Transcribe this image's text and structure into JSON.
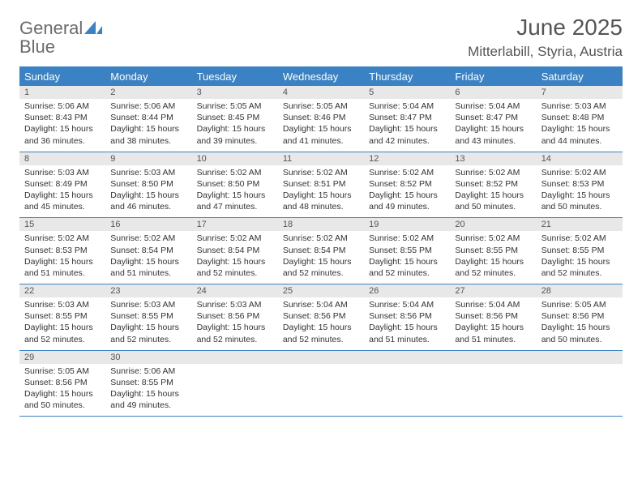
{
  "logo": {
    "word1": "General",
    "word2": "Blue"
  },
  "title": "June 2025",
  "location": "Mitterlabill, Styria, Austria",
  "colors": {
    "accent": "#3b82c4",
    "header_bg": "#3b82c4",
    "header_text": "#ffffff",
    "daynum_bg": "#e8e8e8",
    "text": "#333333",
    "title_text": "#555555"
  },
  "dayHeaders": [
    "Sunday",
    "Monday",
    "Tuesday",
    "Wednesday",
    "Thursday",
    "Friday",
    "Saturday"
  ],
  "weeks": [
    [
      {
        "n": "1",
        "sunrise": "Sunrise: 5:06 AM",
        "sunset": "Sunset: 8:43 PM",
        "day1": "Daylight: 15 hours",
        "day2": "and 36 minutes."
      },
      {
        "n": "2",
        "sunrise": "Sunrise: 5:06 AM",
        "sunset": "Sunset: 8:44 PM",
        "day1": "Daylight: 15 hours",
        "day2": "and 38 minutes."
      },
      {
        "n": "3",
        "sunrise": "Sunrise: 5:05 AM",
        "sunset": "Sunset: 8:45 PM",
        "day1": "Daylight: 15 hours",
        "day2": "and 39 minutes."
      },
      {
        "n": "4",
        "sunrise": "Sunrise: 5:05 AM",
        "sunset": "Sunset: 8:46 PM",
        "day1": "Daylight: 15 hours",
        "day2": "and 41 minutes."
      },
      {
        "n": "5",
        "sunrise": "Sunrise: 5:04 AM",
        "sunset": "Sunset: 8:47 PM",
        "day1": "Daylight: 15 hours",
        "day2": "and 42 minutes."
      },
      {
        "n": "6",
        "sunrise": "Sunrise: 5:04 AM",
        "sunset": "Sunset: 8:47 PM",
        "day1": "Daylight: 15 hours",
        "day2": "and 43 minutes."
      },
      {
        "n": "7",
        "sunrise": "Sunrise: 5:03 AM",
        "sunset": "Sunset: 8:48 PM",
        "day1": "Daylight: 15 hours",
        "day2": "and 44 minutes."
      }
    ],
    [
      {
        "n": "8",
        "sunrise": "Sunrise: 5:03 AM",
        "sunset": "Sunset: 8:49 PM",
        "day1": "Daylight: 15 hours",
        "day2": "and 45 minutes."
      },
      {
        "n": "9",
        "sunrise": "Sunrise: 5:03 AM",
        "sunset": "Sunset: 8:50 PM",
        "day1": "Daylight: 15 hours",
        "day2": "and 46 minutes."
      },
      {
        "n": "10",
        "sunrise": "Sunrise: 5:02 AM",
        "sunset": "Sunset: 8:50 PM",
        "day1": "Daylight: 15 hours",
        "day2": "and 47 minutes."
      },
      {
        "n": "11",
        "sunrise": "Sunrise: 5:02 AM",
        "sunset": "Sunset: 8:51 PM",
        "day1": "Daylight: 15 hours",
        "day2": "and 48 minutes."
      },
      {
        "n": "12",
        "sunrise": "Sunrise: 5:02 AM",
        "sunset": "Sunset: 8:52 PM",
        "day1": "Daylight: 15 hours",
        "day2": "and 49 minutes."
      },
      {
        "n": "13",
        "sunrise": "Sunrise: 5:02 AM",
        "sunset": "Sunset: 8:52 PM",
        "day1": "Daylight: 15 hours",
        "day2": "and 50 minutes."
      },
      {
        "n": "14",
        "sunrise": "Sunrise: 5:02 AM",
        "sunset": "Sunset: 8:53 PM",
        "day1": "Daylight: 15 hours",
        "day2": "and 50 minutes."
      }
    ],
    [
      {
        "n": "15",
        "sunrise": "Sunrise: 5:02 AM",
        "sunset": "Sunset: 8:53 PM",
        "day1": "Daylight: 15 hours",
        "day2": "and 51 minutes."
      },
      {
        "n": "16",
        "sunrise": "Sunrise: 5:02 AM",
        "sunset": "Sunset: 8:54 PM",
        "day1": "Daylight: 15 hours",
        "day2": "and 51 minutes."
      },
      {
        "n": "17",
        "sunrise": "Sunrise: 5:02 AM",
        "sunset": "Sunset: 8:54 PM",
        "day1": "Daylight: 15 hours",
        "day2": "and 52 minutes."
      },
      {
        "n": "18",
        "sunrise": "Sunrise: 5:02 AM",
        "sunset": "Sunset: 8:54 PM",
        "day1": "Daylight: 15 hours",
        "day2": "and 52 minutes."
      },
      {
        "n": "19",
        "sunrise": "Sunrise: 5:02 AM",
        "sunset": "Sunset: 8:55 PM",
        "day1": "Daylight: 15 hours",
        "day2": "and 52 minutes."
      },
      {
        "n": "20",
        "sunrise": "Sunrise: 5:02 AM",
        "sunset": "Sunset: 8:55 PM",
        "day1": "Daylight: 15 hours",
        "day2": "and 52 minutes."
      },
      {
        "n": "21",
        "sunrise": "Sunrise: 5:02 AM",
        "sunset": "Sunset: 8:55 PM",
        "day1": "Daylight: 15 hours",
        "day2": "and 52 minutes."
      }
    ],
    [
      {
        "n": "22",
        "sunrise": "Sunrise: 5:03 AM",
        "sunset": "Sunset: 8:55 PM",
        "day1": "Daylight: 15 hours",
        "day2": "and 52 minutes."
      },
      {
        "n": "23",
        "sunrise": "Sunrise: 5:03 AM",
        "sunset": "Sunset: 8:55 PM",
        "day1": "Daylight: 15 hours",
        "day2": "and 52 minutes."
      },
      {
        "n": "24",
        "sunrise": "Sunrise: 5:03 AM",
        "sunset": "Sunset: 8:56 PM",
        "day1": "Daylight: 15 hours",
        "day2": "and 52 minutes."
      },
      {
        "n": "25",
        "sunrise": "Sunrise: 5:04 AM",
        "sunset": "Sunset: 8:56 PM",
        "day1": "Daylight: 15 hours",
        "day2": "and 52 minutes."
      },
      {
        "n": "26",
        "sunrise": "Sunrise: 5:04 AM",
        "sunset": "Sunset: 8:56 PM",
        "day1": "Daylight: 15 hours",
        "day2": "and 51 minutes."
      },
      {
        "n": "27",
        "sunrise": "Sunrise: 5:04 AM",
        "sunset": "Sunset: 8:56 PM",
        "day1": "Daylight: 15 hours",
        "day2": "and 51 minutes."
      },
      {
        "n": "28",
        "sunrise": "Sunrise: 5:05 AM",
        "sunset": "Sunset: 8:56 PM",
        "day1": "Daylight: 15 hours",
        "day2": "and 50 minutes."
      }
    ],
    [
      {
        "n": "29",
        "sunrise": "Sunrise: 5:05 AM",
        "sunset": "Sunset: 8:56 PM",
        "day1": "Daylight: 15 hours",
        "day2": "and 50 minutes."
      },
      {
        "n": "30",
        "sunrise": "Sunrise: 5:06 AM",
        "sunset": "Sunset: 8:55 PM",
        "day1": "Daylight: 15 hours",
        "day2": "and 49 minutes."
      },
      null,
      null,
      null,
      null,
      null
    ]
  ]
}
